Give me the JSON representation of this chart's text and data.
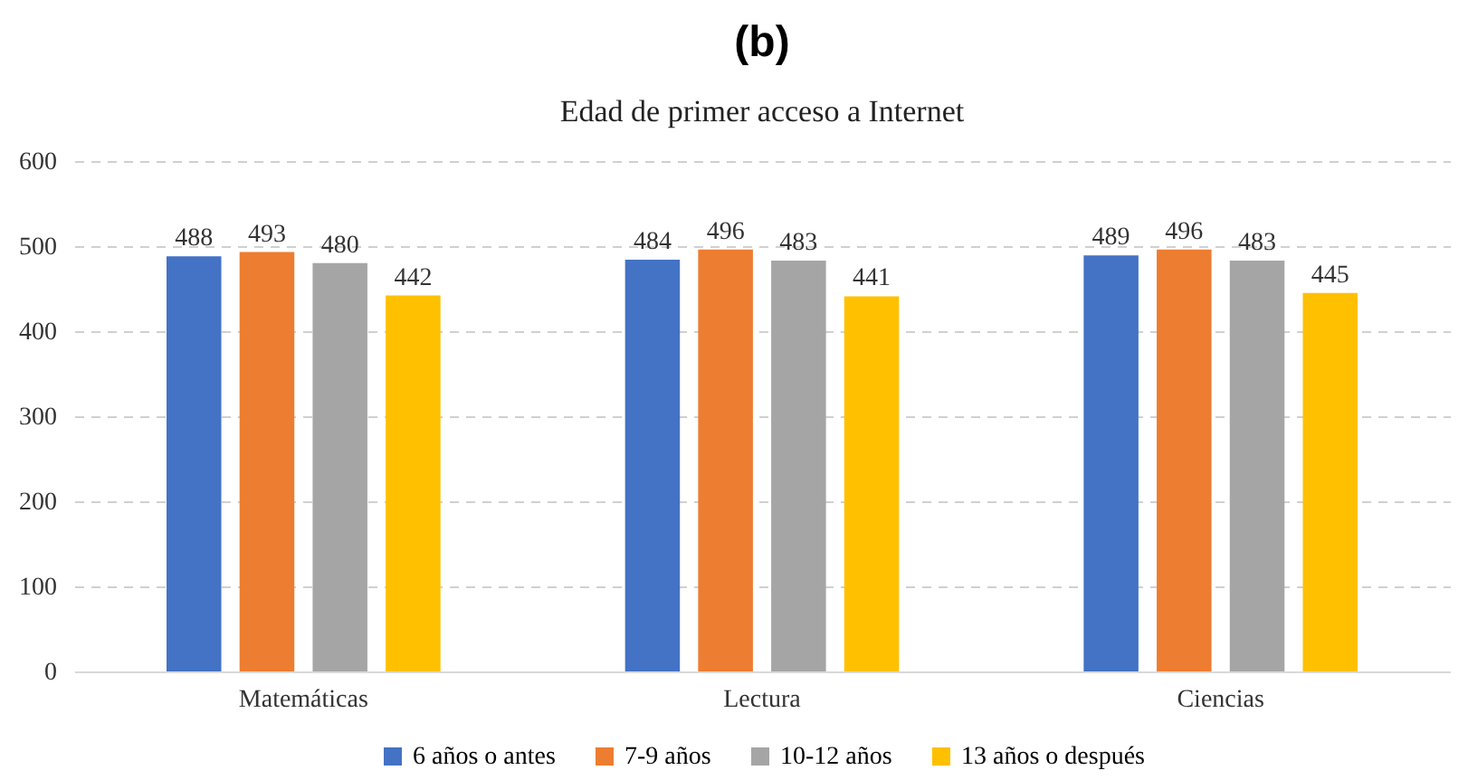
{
  "chart_data": {
    "type": "bar",
    "title": "(b)",
    "subtitle": "Edad de primer acceso a Internet",
    "categories": [
      "Matemáticas",
      "Lectura",
      "Ciencias"
    ],
    "series": [
      {
        "name": "6 años o antes",
        "color": "#4472c4",
        "values": [
          488,
          484,
          489
        ]
      },
      {
        "name": "7-9 años",
        "color": "#ed7d31",
        "values": [
          493,
          496,
          496
        ]
      },
      {
        "name": "10-12 años",
        "color": "#a5a5a5",
        "values": [
          480,
          483,
          483
        ]
      },
      {
        "name": "13 años o después",
        "color": "#ffc000",
        "values": [
          442,
          441,
          445
        ]
      }
    ],
    "ylim": [
      0,
      600
    ],
    "yticks": [
      0,
      100,
      200,
      300,
      400,
      500,
      600
    ],
    "grid": "y",
    "legend": "bottom",
    "data_labels": true
  }
}
